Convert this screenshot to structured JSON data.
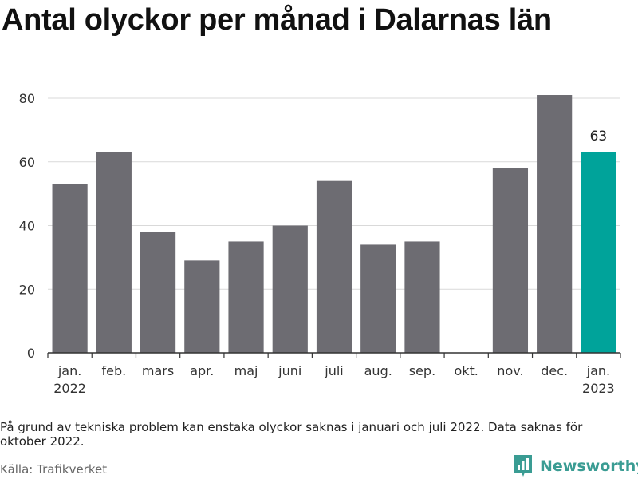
{
  "chart_data": {
    "type": "bar",
    "title": "Antal olyckor per månad i Dalarnas län",
    "categories": [
      "jan. 2022",
      "feb.",
      "mars",
      "apr.",
      "maj",
      "juni",
      "juli",
      "aug.",
      "sep.",
      "okt.",
      "nov.",
      "dec.",
      "jan. 2023"
    ],
    "category_labels": [
      [
        "jan.",
        "2022"
      ],
      [
        "feb."
      ],
      [
        "mars"
      ],
      [
        "apr."
      ],
      [
        "maj"
      ],
      [
        "juni"
      ],
      [
        "juli"
      ],
      [
        "aug."
      ],
      [
        "sep."
      ],
      [
        "okt."
      ],
      [
        "nov."
      ],
      [
        "dec."
      ],
      [
        "jan.",
        "2023"
      ]
    ],
    "values": [
      53,
      63,
      38,
      29,
      35,
      40,
      54,
      34,
      35,
      null,
      58,
      81,
      63
    ],
    "highlight_index": 12,
    "highlight_label": "63",
    "yticks": [
      0,
      20,
      40,
      60,
      80
    ],
    "ylim": [
      0,
      85
    ],
    "xlabel": "",
    "ylabel": "",
    "grid": true,
    "colors": {
      "bar": "#6d6c72",
      "highlight": "#00a39a",
      "grid": "#d9d9d9",
      "axis": "#333333"
    }
  },
  "note": "På grund av tekniska problem kan enstaka olyckor saknas i januari och juli 2022. Data saknas för oktober 2022.",
  "source": "Källa: Trafikverket",
  "brand": {
    "name": "Newsworthy",
    "icon": "bar-chart-logo-icon",
    "color": "#3a9c93"
  }
}
